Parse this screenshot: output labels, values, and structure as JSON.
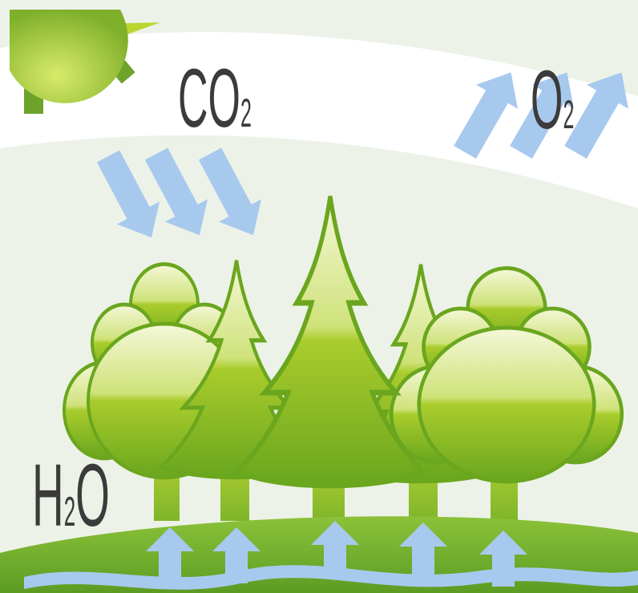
{
  "labels": {
    "co2": {
      "main": "CO",
      "sub": "2"
    },
    "o2": {
      "main": "O",
      "sub": "2"
    },
    "h2o": {
      "first": "H",
      "sub": "2",
      "last": "O"
    }
  }
}
